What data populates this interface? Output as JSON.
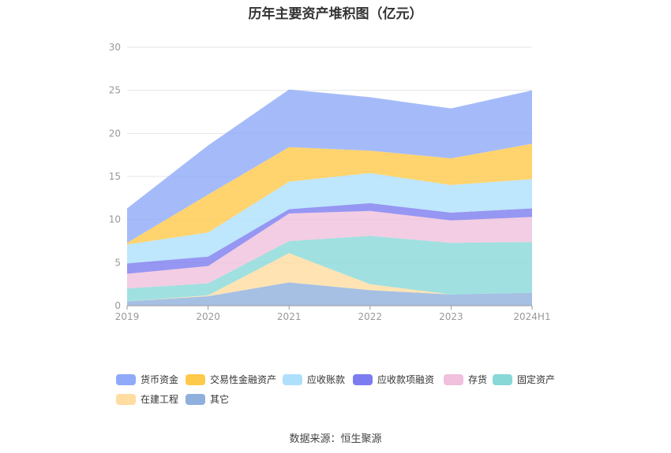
{
  "chart_data": {
    "type": "area",
    "stacked": true,
    "title": "历年主要资产堆积图（亿元）",
    "categories": [
      "2019",
      "2020",
      "2021",
      "2022",
      "2023",
      "2024H1"
    ],
    "ylim": [
      0,
      30
    ],
    "yticks": [
      0,
      5,
      10,
      15,
      20,
      25,
      30
    ],
    "grid": true,
    "legend_position": "bottom",
    "series": [
      {
        "name": "其它",
        "color": "#8fb0dc",
        "values": [
          0.5,
          1.1,
          2.7,
          1.8,
          1.3,
          1.5
        ]
      },
      {
        "name": "在建工程",
        "color": "#ffdca0",
        "values": [
          0.0,
          0.1,
          3.4,
          0.7,
          0.0,
          0.0
        ]
      },
      {
        "name": "固定资产",
        "color": "#88d8d8",
        "values": [
          1.5,
          1.4,
          1.4,
          5.6,
          6.0,
          5.9
        ]
      },
      {
        "name": "存货",
        "color": "#f0c0dc",
        "values": [
          1.7,
          2.0,
          3.2,
          2.9,
          2.6,
          2.9
        ]
      },
      {
        "name": "应收款项融资",
        "color": "#7c7cf0",
        "values": [
          1.2,
          1.1,
          0.5,
          0.9,
          0.9,
          1.0
        ]
      },
      {
        "name": "应收账款",
        "color": "#aee0fb",
        "values": [
          2.2,
          2.8,
          3.2,
          3.5,
          3.2,
          3.4
        ]
      },
      {
        "name": "交易性金融资产",
        "color": "#ffc94a",
        "values": [
          0.2,
          4.4,
          4.0,
          2.6,
          3.1,
          4.1
        ]
      },
      {
        "name": "货币资金",
        "color": "#8eaaf8",
        "values": [
          4.0,
          5.7,
          6.7,
          6.2,
          5.8,
          6.2
        ]
      }
    ]
  },
  "legend": {
    "items": [
      {
        "label": "货币资金",
        "color": "#8eaaf8"
      },
      {
        "label": "交易性金融资产",
        "color": "#ffc94a"
      },
      {
        "label": "应收账款",
        "color": "#aee0fb"
      },
      {
        "label": "应收款项融资",
        "color": "#7c7cf0"
      },
      {
        "label": "存货",
        "color": "#f0c0dc"
      },
      {
        "label": "固定资产",
        "color": "#88d8d8"
      },
      {
        "label": "在建工程",
        "color": "#ffdca0"
      },
      {
        "label": "其它",
        "color": "#8fb0dc"
      }
    ]
  },
  "source": "数据来源：恒生聚源"
}
